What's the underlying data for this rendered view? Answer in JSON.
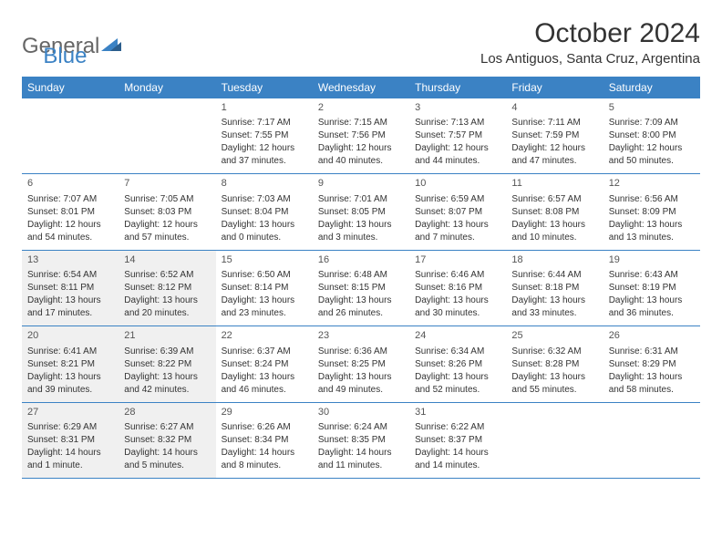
{
  "logo": {
    "text_general": "General",
    "text_blue": "Blue"
  },
  "title": "October 2024",
  "location": "Los Antiguos, Santa Cruz, Argentina",
  "header_bg": "#3b82c4",
  "shaded_bg": "#f0f0f0",
  "day_headers": [
    "Sunday",
    "Monday",
    "Tuesday",
    "Wednesday",
    "Thursday",
    "Friday",
    "Saturday"
  ],
  "weeks": [
    [
      {
        "day": "",
        "lines": []
      },
      {
        "day": "",
        "lines": []
      },
      {
        "day": "1",
        "lines": [
          "Sunrise: 7:17 AM",
          "Sunset: 7:55 PM",
          "Daylight: 12 hours and 37 minutes."
        ]
      },
      {
        "day": "2",
        "lines": [
          "Sunrise: 7:15 AM",
          "Sunset: 7:56 PM",
          "Daylight: 12 hours and 40 minutes."
        ]
      },
      {
        "day": "3",
        "lines": [
          "Sunrise: 7:13 AM",
          "Sunset: 7:57 PM",
          "Daylight: 12 hours and 44 minutes."
        ]
      },
      {
        "day": "4",
        "lines": [
          "Sunrise: 7:11 AM",
          "Sunset: 7:59 PM",
          "Daylight: 12 hours and 47 minutes."
        ]
      },
      {
        "day": "5",
        "lines": [
          "Sunrise: 7:09 AM",
          "Sunset: 8:00 PM",
          "Daylight: 12 hours and 50 minutes."
        ]
      }
    ],
    [
      {
        "day": "6",
        "lines": [
          "Sunrise: 7:07 AM",
          "Sunset: 8:01 PM",
          "Daylight: 12 hours and 54 minutes."
        ]
      },
      {
        "day": "7",
        "lines": [
          "Sunrise: 7:05 AM",
          "Sunset: 8:03 PM",
          "Daylight: 12 hours and 57 minutes."
        ]
      },
      {
        "day": "8",
        "lines": [
          "Sunrise: 7:03 AM",
          "Sunset: 8:04 PM",
          "Daylight: 13 hours and 0 minutes."
        ]
      },
      {
        "day": "9",
        "lines": [
          "Sunrise: 7:01 AM",
          "Sunset: 8:05 PM",
          "Daylight: 13 hours and 3 minutes."
        ]
      },
      {
        "day": "10",
        "lines": [
          "Sunrise: 6:59 AM",
          "Sunset: 8:07 PM",
          "Daylight: 13 hours and 7 minutes."
        ]
      },
      {
        "day": "11",
        "lines": [
          "Sunrise: 6:57 AM",
          "Sunset: 8:08 PM",
          "Daylight: 13 hours and 10 minutes."
        ]
      },
      {
        "day": "12",
        "lines": [
          "Sunrise: 6:56 AM",
          "Sunset: 8:09 PM",
          "Daylight: 13 hours and 13 minutes."
        ]
      }
    ],
    [
      {
        "day": "13",
        "shaded": true,
        "lines": [
          "Sunrise: 6:54 AM",
          "Sunset: 8:11 PM",
          "Daylight: 13 hours and 17 minutes."
        ]
      },
      {
        "day": "14",
        "shaded": true,
        "lines": [
          "Sunrise: 6:52 AM",
          "Sunset: 8:12 PM",
          "Daylight: 13 hours and 20 minutes."
        ]
      },
      {
        "day": "15",
        "lines": [
          "Sunrise: 6:50 AM",
          "Sunset: 8:14 PM",
          "Daylight: 13 hours and 23 minutes."
        ]
      },
      {
        "day": "16",
        "lines": [
          "Sunrise: 6:48 AM",
          "Sunset: 8:15 PM",
          "Daylight: 13 hours and 26 minutes."
        ]
      },
      {
        "day": "17",
        "lines": [
          "Sunrise: 6:46 AM",
          "Sunset: 8:16 PM",
          "Daylight: 13 hours and 30 minutes."
        ]
      },
      {
        "day": "18",
        "lines": [
          "Sunrise: 6:44 AM",
          "Sunset: 8:18 PM",
          "Daylight: 13 hours and 33 minutes."
        ]
      },
      {
        "day": "19",
        "lines": [
          "Sunrise: 6:43 AM",
          "Sunset: 8:19 PM",
          "Daylight: 13 hours and 36 minutes."
        ]
      }
    ],
    [
      {
        "day": "20",
        "shaded": true,
        "lines": [
          "Sunrise: 6:41 AM",
          "Sunset: 8:21 PM",
          "Daylight: 13 hours and 39 minutes."
        ]
      },
      {
        "day": "21",
        "shaded": true,
        "lines": [
          "Sunrise: 6:39 AM",
          "Sunset: 8:22 PM",
          "Daylight: 13 hours and 42 minutes."
        ]
      },
      {
        "day": "22",
        "lines": [
          "Sunrise: 6:37 AM",
          "Sunset: 8:24 PM",
          "Daylight: 13 hours and 46 minutes."
        ]
      },
      {
        "day": "23",
        "lines": [
          "Sunrise: 6:36 AM",
          "Sunset: 8:25 PM",
          "Daylight: 13 hours and 49 minutes."
        ]
      },
      {
        "day": "24",
        "lines": [
          "Sunrise: 6:34 AM",
          "Sunset: 8:26 PM",
          "Daylight: 13 hours and 52 minutes."
        ]
      },
      {
        "day": "25",
        "lines": [
          "Sunrise: 6:32 AM",
          "Sunset: 8:28 PM",
          "Daylight: 13 hours and 55 minutes."
        ]
      },
      {
        "day": "26",
        "lines": [
          "Sunrise: 6:31 AM",
          "Sunset: 8:29 PM",
          "Daylight: 13 hours and 58 minutes."
        ]
      }
    ],
    [
      {
        "day": "27",
        "shaded": true,
        "lines": [
          "Sunrise: 6:29 AM",
          "Sunset: 8:31 PM",
          "Daylight: 14 hours and 1 minute."
        ]
      },
      {
        "day": "28",
        "shaded": true,
        "lines": [
          "Sunrise: 6:27 AM",
          "Sunset: 8:32 PM",
          "Daylight: 14 hours and 5 minutes."
        ]
      },
      {
        "day": "29",
        "lines": [
          "Sunrise: 6:26 AM",
          "Sunset: 8:34 PM",
          "Daylight: 14 hours and 8 minutes."
        ]
      },
      {
        "day": "30",
        "lines": [
          "Sunrise: 6:24 AM",
          "Sunset: 8:35 PM",
          "Daylight: 14 hours and 11 minutes."
        ]
      },
      {
        "day": "31",
        "lines": [
          "Sunrise: 6:22 AM",
          "Sunset: 8:37 PM",
          "Daylight: 14 hours and 14 minutes."
        ]
      },
      {
        "day": "",
        "lines": []
      },
      {
        "day": "",
        "lines": []
      }
    ]
  ]
}
